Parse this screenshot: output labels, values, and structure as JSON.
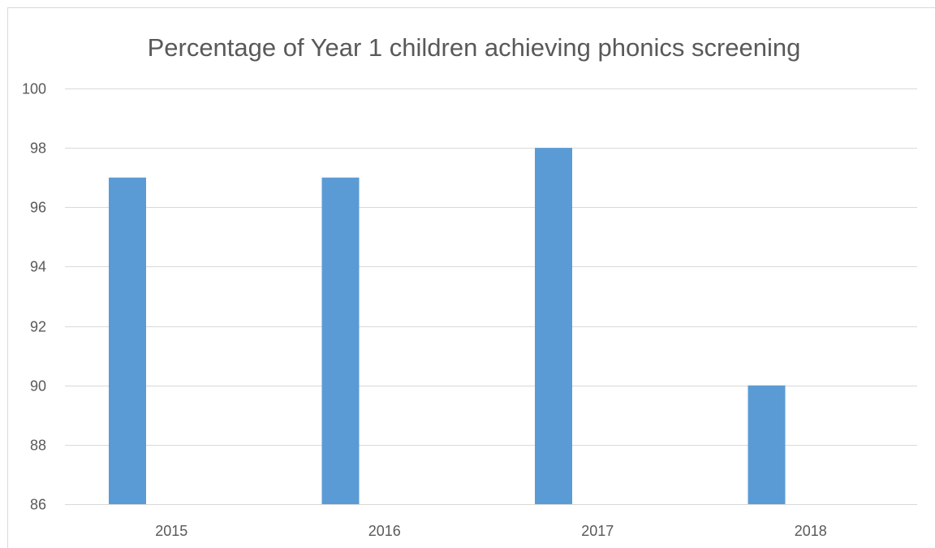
{
  "chart_data": {
    "type": "bar",
    "title": "Percentage of Year 1 children achieving phonics screening",
    "xlabel": "",
    "ylabel": "",
    "categories": [
      "2015",
      "2016",
      "2017",
      "2018"
    ],
    "values": [
      97,
      97,
      98,
      90
    ],
    "ylim": [
      86,
      100
    ],
    "yticks": [
      86,
      88,
      90,
      92,
      94,
      96,
      98,
      100
    ],
    "grid": true,
    "legend": "none",
    "colors": {
      "bar": "#5b9bd5",
      "grid": "#d9d9d9",
      "text": "#595959"
    }
  }
}
